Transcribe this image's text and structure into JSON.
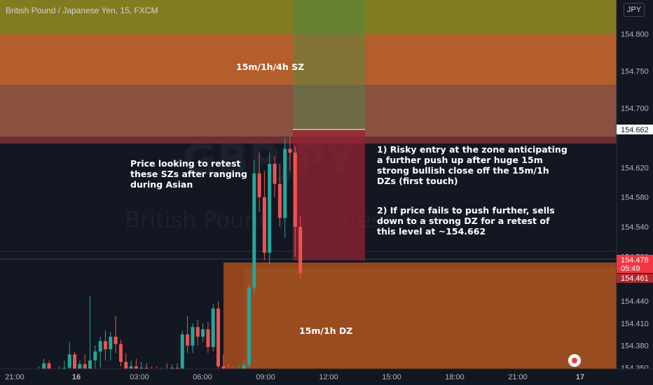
{
  "header": {
    "title": "British Pound / Japanese Yen, 15, FXCM",
    "currency": "JPY",
    "watermark_symbol": "GBPJPY",
    "watermark_name": "British Pound / Japanese Yen"
  },
  "price_axis": {
    "ticks": [
      "154.800",
      "154.750",
      "154.700",
      "154.620",
      "154.580",
      "154.540",
      "154.500",
      "154.440",
      "154.410",
      "154.380",
      "154.350"
    ],
    "markers": [
      {
        "label": "154.662",
        "style": "white"
      },
      {
        "label": "154.478",
        "style": "red"
      },
      {
        "label": "05:49",
        "style": "red"
      },
      {
        "label": "154.461",
        "style": "red"
      }
    ]
  },
  "time_axis": {
    "ticks": [
      "21:00",
      "16",
      "03:00",
      "06:00",
      "09:00",
      "12:00",
      "15:00",
      "18:00",
      "21:00",
      "17"
    ]
  },
  "zones": {
    "supply_label": "15m/1h/4h SZ",
    "demand_label": "15m/1h DZ"
  },
  "annotations": {
    "left_note": "Price looking to retest\nthese SZs after ranging\nduring Asian",
    "entry_note": "1) Risky entry at the zone anticipating\na further push up after huge 15m\nstrong bullish close off the 15m/1h\nDZs (first touch)",
    "fail_note": "2) If price fails to push further, sells\ndown to a strong DZ for a retest of\nthis level at ~154.662"
  },
  "colors": {
    "background": "#131722",
    "bull": "#26a69a",
    "bear": "#ef5350",
    "supply_top": "#817c1f",
    "supply_mid": "#b45f2b",
    "supply_low": "#8a5140",
    "demand": "#93461e",
    "short_target": "#2f6a3a"
  },
  "chart_data": {
    "type": "candlestick",
    "y_range": [
      154.325,
      154.84
    ],
    "candles": [
      {
        "o": 154.33,
        "h": 154.348,
        "l": 154.322,
        "c": 154.344
      },
      {
        "o": 154.344,
        "h": 154.352,
        "l": 154.33,
        "c": 154.335
      },
      {
        "o": 154.335,
        "h": 154.362,
        "l": 154.33,
        "c": 154.356
      },
      {
        "o": 154.356,
        "h": 154.36,
        "l": 154.328,
        "c": 154.331
      },
      {
        "o": 154.331,
        "h": 154.345,
        "l": 154.325,
        "c": 154.34
      },
      {
        "o": 154.34,
        "h": 154.352,
        "l": 154.326,
        "c": 154.33
      },
      {
        "o": 154.33,
        "h": 154.36,
        "l": 154.327,
        "c": 154.35
      },
      {
        "o": 154.35,
        "h": 154.385,
        "l": 154.33,
        "c": 154.368
      },
      {
        "o": 154.368,
        "h": 154.372,
        "l": 154.33,
        "c": 154.34
      },
      {
        "o": 154.34,
        "h": 154.36,
        "l": 154.326,
        "c": 154.355
      },
      {
        "o": 154.355,
        "h": 154.368,
        "l": 154.33,
        "c": 154.338
      },
      {
        "o": 154.338,
        "h": 154.447,
        "l": 154.33,
        "c": 154.36
      },
      {
        "o": 154.36,
        "h": 154.38,
        "l": 154.34,
        "c": 154.372
      },
      {
        "o": 154.372,
        "h": 154.392,
        "l": 154.35,
        "c": 154.386
      },
      {
        "o": 154.386,
        "h": 154.4,
        "l": 154.36,
        "c": 154.375
      },
      {
        "o": 154.375,
        "h": 154.398,
        "l": 154.36,
        "c": 154.392
      },
      {
        "o": 154.392,
        "h": 154.42,
        "l": 154.37,
        "c": 154.382
      },
      {
        "o": 154.382,
        "h": 154.388,
        "l": 154.352,
        "c": 154.358
      },
      {
        "o": 154.358,
        "h": 154.37,
        "l": 154.335,
        "c": 154.345
      },
      {
        "o": 154.345,
        "h": 154.36,
        "l": 154.328,
        "c": 154.352
      },
      {
        "o": 154.352,
        "h": 154.362,
        "l": 154.33,
        "c": 154.34
      },
      {
        "o": 154.34,
        "h": 154.358,
        "l": 154.33,
        "c": 154.35
      },
      {
        "o": 154.35,
        "h": 154.356,
        "l": 154.33,
        "c": 154.338
      },
      {
        "o": 154.338,
        "h": 154.352,
        "l": 154.33,
        "c": 154.346
      },
      {
        "o": 154.346,
        "h": 154.352,
        "l": 154.326,
        "c": 154.333
      },
      {
        "o": 154.333,
        "h": 154.35,
        "l": 154.328,
        "c": 154.345
      },
      {
        "o": 154.345,
        "h": 154.356,
        "l": 154.33,
        "c": 154.338
      },
      {
        "o": 154.338,
        "h": 154.355,
        "l": 154.33,
        "c": 154.35
      },
      {
        "o": 154.35,
        "h": 154.356,
        "l": 154.332,
        "c": 154.34
      },
      {
        "o": 154.34,
        "h": 154.4,
        "l": 154.33,
        "c": 154.395
      },
      {
        "o": 154.395,
        "h": 154.42,
        "l": 154.37,
        "c": 154.38
      },
      {
        "o": 154.38,
        "h": 154.41,
        "l": 154.37,
        "c": 154.405
      },
      {
        "o": 154.405,
        "h": 154.415,
        "l": 154.38,
        "c": 154.392
      },
      {
        "o": 154.392,
        "h": 154.41,
        "l": 154.385,
        "c": 154.402
      },
      {
        "o": 154.402,
        "h": 154.412,
        "l": 154.37,
        "c": 154.378
      },
      {
        "o": 154.378,
        "h": 154.436,
        "l": 154.372,
        "c": 154.43
      },
      {
        "o": 154.43,
        "h": 154.44,
        "l": 154.345,
        "c": 154.352
      },
      {
        "o": 154.352,
        "h": 154.368,
        "l": 154.335,
        "c": 154.345
      },
      {
        "o": 154.345,
        "h": 154.355,
        "l": 154.33,
        "c": 154.338
      },
      {
        "o": 154.338,
        "h": 154.352,
        "l": 154.325,
        "c": 154.335
      },
      {
        "o": 154.335,
        "h": 154.355,
        "l": 154.325,
        "c": 154.345
      },
      {
        "o": 154.345,
        "h": 154.36,
        "l": 154.335,
        "c": 154.354
      },
      {
        "o": 154.354,
        "h": 154.462,
        "l": 154.335,
        "c": 154.458
      },
      {
        "o": 154.458,
        "h": 154.63,
        "l": 154.45,
        "c": 154.612
      },
      {
        "o": 154.612,
        "h": 154.64,
        "l": 154.56,
        "c": 154.58
      },
      {
        "o": 154.58,
        "h": 154.615,
        "l": 154.495,
        "c": 154.505
      },
      {
        "o": 154.505,
        "h": 154.64,
        "l": 154.49,
        "c": 154.625
      },
      {
        "o": 154.625,
        "h": 154.635,
        "l": 154.58,
        "c": 154.598
      },
      {
        "o": 154.598,
        "h": 154.625,
        "l": 154.54,
        "c": 154.552
      },
      {
        "o": 154.552,
        "h": 154.66,
        "l": 154.525,
        "c": 154.645
      },
      {
        "o": 154.645,
        "h": 154.662,
        "l": 154.615,
        "c": 154.64
      },
      {
        "o": 154.64,
        "h": 154.648,
        "l": 154.5,
        "c": 154.54
      },
      {
        "o": 154.54,
        "h": 154.555,
        "l": 154.47,
        "c": 154.478
      }
    ]
  }
}
